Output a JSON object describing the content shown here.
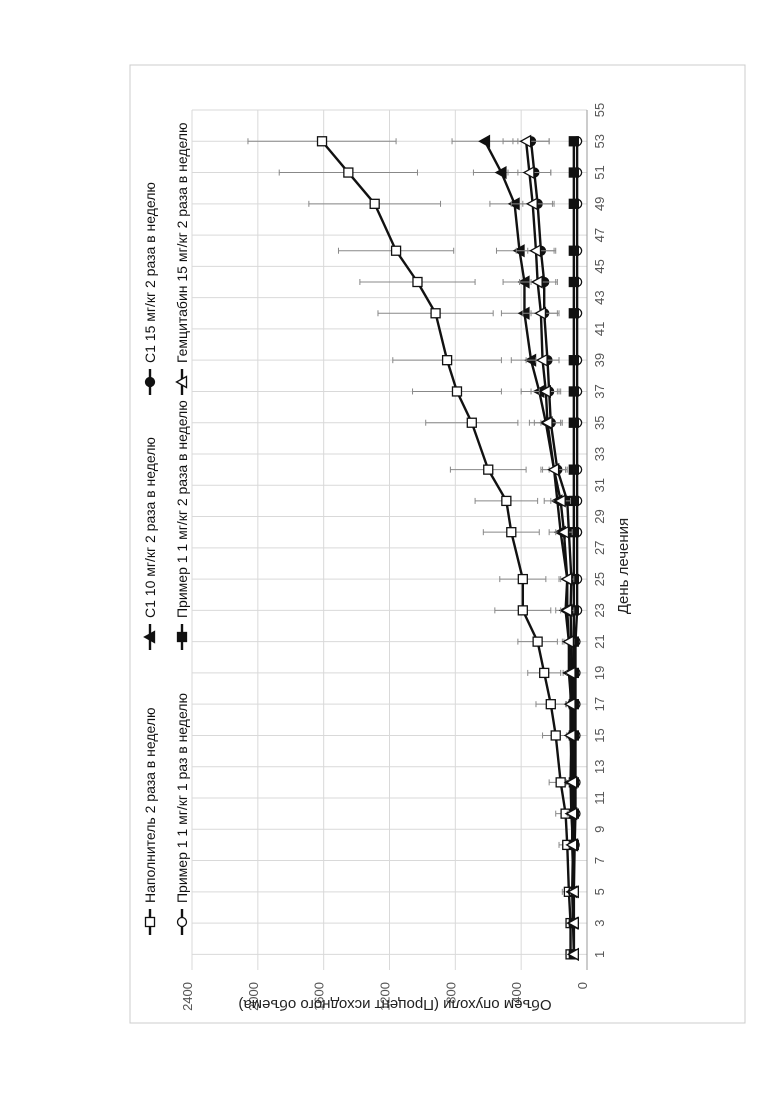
{
  "chart_data": {
    "type": "line",
    "orientation": "rotated-90-clockwise",
    "xlabel": "День лечения",
    "ylabel": "Объем опухоли (Процент исходного объема)",
    "x_ticks": [
      1,
      3,
      5,
      7,
      9,
      11,
      13,
      15,
      17,
      19,
      21,
      23,
      25,
      27,
      29,
      31,
      33,
      35,
      37,
      39,
      41,
      43,
      45,
      47,
      49,
      51,
      53,
      55
    ],
    "y_ticks": [
      0,
      400,
      800,
      1200,
      1600,
      2000,
      2400
    ],
    "xlim": [
      0,
      55
    ],
    "ylim": [
      0,
      2400
    ],
    "grid": true,
    "legend_position": "top",
    "series": [
      {
        "name": "Наполнитель 2 раза в неделю",
        "marker": "square-open",
        "x": [
          1,
          3,
          5,
          8,
          10,
          12,
          15,
          17,
          19,
          21,
          23,
          25,
          28,
          30,
          32,
          35,
          37,
          39,
          42,
          44,
          46,
          49,
          51,
          53
        ],
        "y": [
          100,
          100,
          110,
          120,
          130,
          160,
          190,
          220,
          260,
          300,
          390,
          390,
          460,
          490,
          600,
          700,
          790,
          850,
          920,
          1030,
          1160,
          1290,
          1450,
          1610
        ],
        "err": [
          0,
          0,
          40,
          50,
          60,
          70,
          80,
          90,
          100,
          120,
          170,
          140,
          170,
          190,
          230,
          280,
          270,
          330,
          350,
          350,
          350,
          400,
          420,
          450
        ]
      },
      {
        "name": "С1 10 мг/кг 2 раза в неделю",
        "marker": "triangle-filled",
        "x": [
          1,
          3,
          5,
          8,
          10,
          12,
          15,
          17,
          19,
          21,
          23,
          25,
          28,
          30,
          32,
          35,
          37,
          39,
          42,
          44,
          46,
          49,
          51,
          53
        ],
        "y": [
          80,
          85,
          90,
          85,
          95,
          100,
          95,
          95,
          110,
          110,
          130,
          120,
          160,
          180,
          200,
          250,
          290,
          340,
          380,
          380,
          410,
          440,
          520,
          620
        ],
        "err": [
          0,
          0,
          20,
          20,
          25,
          25,
          25,
          30,
          35,
          40,
          60,
          50,
          70,
          80,
          80,
          100,
          110,
          120,
          140,
          130,
          140,
          150,
          170,
          200
        ]
      },
      {
        "name": "С1 15 мг/кг 2 раза в неделю",
        "marker": "circle-filled",
        "x": [
          1,
          3,
          5,
          8,
          10,
          12,
          15,
          17,
          19,
          21,
          23,
          25,
          28,
          30,
          32,
          35,
          37,
          39,
          42,
          44,
          46,
          49,
          51,
          53
        ],
        "y": [
          80,
          80,
          85,
          85,
          85,
          85,
          90,
          90,
          90,
          95,
          100,
          95,
          110,
          120,
          180,
          220,
          230,
          240,
          260,
          260,
          280,
          300,
          320,
          340
        ],
        "err": [
          0,
          0,
          15,
          15,
          15,
          15,
          20,
          20,
          20,
          20,
          25,
          25,
          30,
          35,
          50,
          60,
          60,
          70,
          80,
          80,
          80,
          90,
          100,
          110
        ]
      },
      {
        "name": "Пример 1 1 мг/кг 1 раз в неделю",
        "marker": "circle-open",
        "x": [
          1,
          3,
          5,
          8,
          10,
          12,
          15,
          17,
          19,
          21,
          23,
          25,
          28,
          30,
          32,
          35,
          37,
          39,
          42,
          44,
          46,
          49,
          51,
          53
        ],
        "y": [
          80,
          80,
          80,
          75,
          70,
          70,
          70,
          70,
          70,
          70,
          60,
          60,
          60,
          60,
          60,
          60,
          60,
          60,
          60,
          60,
          60,
          60,
          60,
          60
        ],
        "err": [
          0,
          0,
          15,
          15,
          15,
          15,
          15,
          15,
          15,
          15,
          15,
          15,
          15,
          15,
          15,
          15,
          15,
          15,
          15,
          15,
          15,
          15,
          15,
          15
        ]
      },
      {
        "name": "Пример 1 1 мг/кг 2 раза в неделю",
        "marker": "square-filled",
        "x": [
          1,
          3,
          5,
          8,
          10,
          12,
          15,
          17,
          19,
          21,
          23,
          25,
          28,
          30,
          32,
          35,
          37,
          39,
          42,
          44,
          46,
          49,
          51,
          53
        ],
        "y": [
          80,
          80,
          80,
          80,
          80,
          80,
          80,
          80,
          80,
          80,
          80,
          80,
          80,
          80,
          80,
          80,
          80,
          80,
          80,
          80,
          80,
          80,
          80,
          80
        ],
        "err": [
          0,
          0,
          15,
          15,
          15,
          15,
          15,
          15,
          15,
          15,
          15,
          15,
          15,
          15,
          15,
          15,
          15,
          15,
          15,
          15,
          15,
          15,
          15,
          15
        ]
      },
      {
        "name": "Гемцитабин 15 мг/кг 2 раза в неделю",
        "marker": "triangle-open",
        "x": [
          1,
          3,
          5,
          8,
          10,
          12,
          15,
          17,
          19,
          21,
          23,
          25,
          28,
          30,
          32,
          35,
          37,
          39,
          42,
          44,
          46,
          49,
          51,
          53
        ],
        "y": [
          80,
          80,
          80,
          90,
          90,
          90,
          100,
          100,
          100,
          110,
          120,
          120,
          140,
          160,
          200,
          240,
          250,
          270,
          280,
          300,
          310,
          330,
          350,
          370
        ],
        "err": [
          0,
          0,
          20,
          20,
          20,
          20,
          25,
          25,
          25,
          30,
          40,
          40,
          50,
          60,
          70,
          80,
          90,
          100,
          110,
          110,
          120,
          130,
          130,
          140
        ]
      }
    ],
    "colors": {
      "line": "#111111",
      "error_bar": "#888888",
      "grid": "#d9d9d9",
      "frame": "#cccccc"
    }
  }
}
